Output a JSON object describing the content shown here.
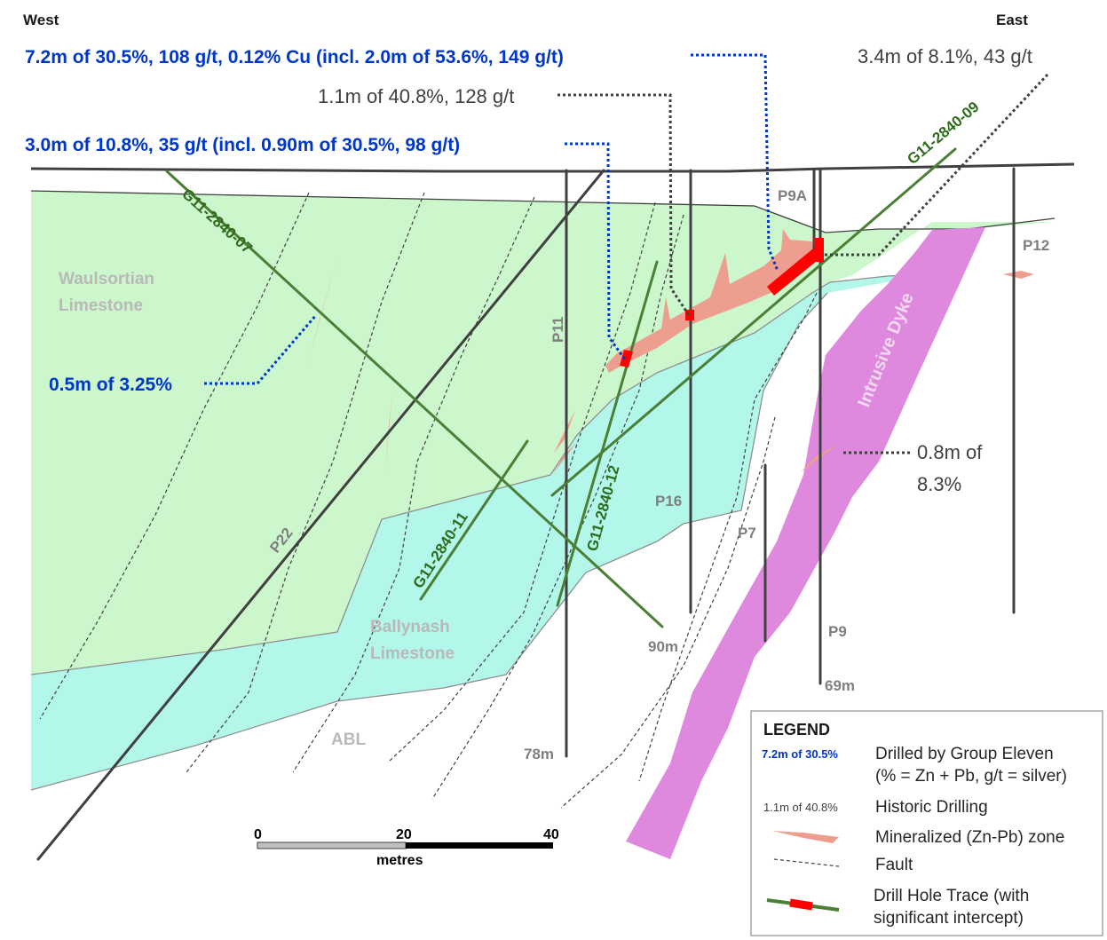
{
  "orientation": {
    "west": "West",
    "east": "East"
  },
  "annotations": {
    "g07_main": "7.2m of 30.5%, 108 g/t, 0.12% Cu (incl. 2.0m of 53.6%, 149 g/t)",
    "g12_main": "3.0m of 10.8%, 35 g/t (incl. 0.90m of 30.5%, 98 g/t)",
    "g07_upper": "0.5m of 3.25%",
    "hist_p16": "1.1m of 40.8%, 128 g/t",
    "hist_p9a": "3.4m of 8.1%, 43 g/t",
    "hist_dyke_line1": "0.8m of",
    "hist_dyke_line2": "8.3%"
  },
  "units": {
    "waulsortian_line1": "Waulsortian",
    "waulsortian_line2": "Limestone",
    "ballynash_line1": "Ballynash",
    "ballynash_line2": "Limestone",
    "abl": "ABL",
    "dyke": "Intrusive Dyke"
  },
  "holes": {
    "g07": "G11-2840-07",
    "g09": "G11-2840-09",
    "g11": "G11-2840-11",
    "g12": "G11-2840-12",
    "p22": "P22",
    "p11": "P11",
    "p16": "P16",
    "p7": "P7",
    "p9a": "P9A",
    "p9": "P9",
    "p12": "P12"
  },
  "depths": {
    "g07": "90m",
    "p11": "78m",
    "p9": "69m"
  },
  "scale_bar": {
    "ticks": [
      "0",
      "20",
      "40"
    ],
    "unit": "metres"
  },
  "legend": {
    "title": "LEGEND",
    "group_eleven_sample": "7.2m of 30.5%",
    "group_eleven_line1": "Drilled by Group Eleven",
    "group_eleven_line2": "(% = Zn + Pb, g/t = silver)",
    "historic_sample": "1.1m of 40.8%",
    "historic_label": "Historic Drilling",
    "mineralized_label": "Mineralized (Zn-Pb) zone",
    "fault_label": "Fault",
    "trace_line1": "Drill Hole Trace (with",
    "trace_line2": "significant intercept)"
  },
  "colors": {
    "waulsortian": "#ccf7cc",
    "ballynash": "#b3f7ea",
    "dyke": "#de89de",
    "mineralized": "#ee9e8e",
    "intercept": "#ff0000",
    "group_eleven_trace": "#4a7f35",
    "historic_trace": "#404040",
    "group_eleven_text": "#0037c9",
    "historic_text": "#404040",
    "unit_label": "#b9b9b9",
    "hole_label": "#7f7f7f"
  }
}
